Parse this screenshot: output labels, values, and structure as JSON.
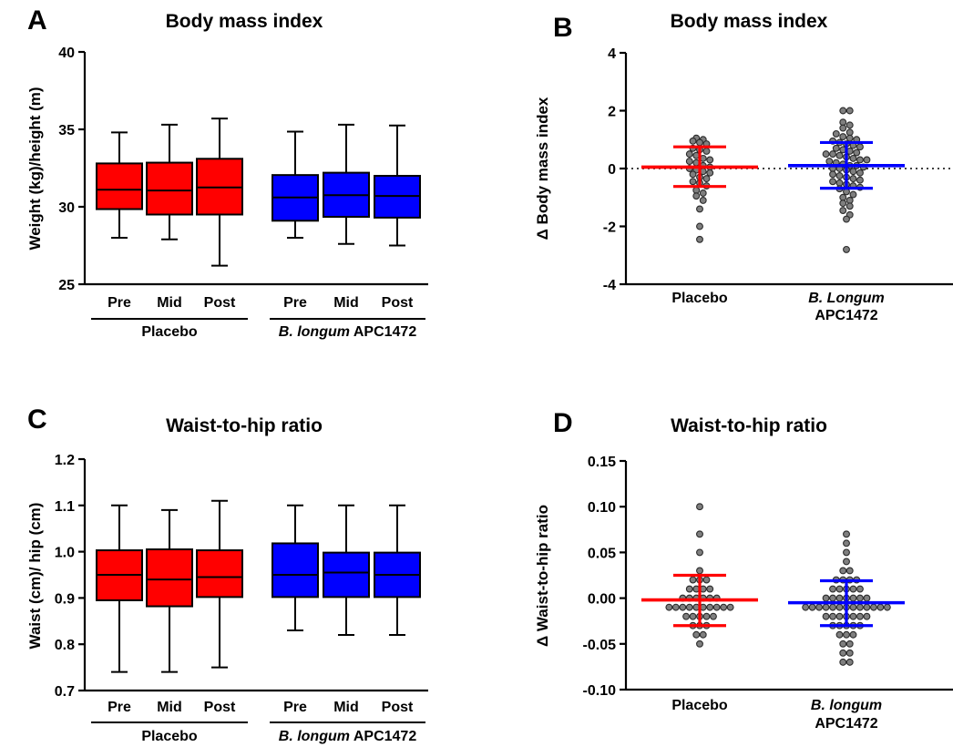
{
  "chart_data": [
    {
      "type": "box",
      "panel_label": "A",
      "title": "Body mass index",
      "ylabel": "Weight (kg)/height (m)",
      "ylim": [
        25,
        40
      ],
      "yticks": [
        "25",
        "30",
        "35",
        "40"
      ],
      "categories": [
        "Pre",
        "Mid",
        "Post",
        "Pre",
        "Mid",
        "Post"
      ],
      "groups": [
        {
          "label": "Placebo",
          "label_italic": "",
          "label_rest": "Placebo",
          "color": "#ff0000"
        },
        {
          "label": "B. longum APC1472",
          "label_italic": "B. longum",
          "label_rest": " APC1472",
          "color": "#0000ff"
        }
      ],
      "boxes": [
        {
          "group": 0,
          "min": 28.0,
          "q1": 29.85,
          "median": 31.1,
          "q3": 32.8,
          "max": 34.8
        },
        {
          "group": 0,
          "min": 27.9,
          "q1": 29.5,
          "median": 31.05,
          "q3": 32.85,
          "max": 35.3
        },
        {
          "group": 0,
          "min": 26.2,
          "q1": 29.5,
          "median": 31.25,
          "q3": 33.1,
          "max": 35.7
        },
        {
          "group": 1,
          "min": 28.0,
          "q1": 29.1,
          "median": 30.6,
          "q3": 32.05,
          "max": 34.85
        },
        {
          "group": 1,
          "min": 27.6,
          "q1": 29.35,
          "median": 30.75,
          "q3": 32.2,
          "max": 35.3
        },
        {
          "group": 1,
          "min": 27.5,
          "q1": 29.3,
          "median": 30.7,
          "q3": 32.0,
          "max": 35.25
        }
      ]
    },
    {
      "type": "scatter",
      "panel_label": "B",
      "title": "Body mass index",
      "ylabel": "Δ Body mass index",
      "ylim": [
        -4,
        4
      ],
      "yticks": [
        "-4",
        "-2",
        "0",
        "2",
        "4"
      ],
      "reference_line": 0,
      "categories": [
        {
          "line1": "Placebo",
          "line1_italic": false,
          "line2": ""
        },
        {
          "line1": "B. Longum",
          "line1_italic": true,
          "line2": "APC1472"
        }
      ],
      "series": [
        {
          "color": "#ff0000",
          "mean": 0.05,
          "sd_upper": 0.75,
          "sd_lower": -0.62,
          "values": [
            1.05,
            1.0,
            0.95,
            0.9,
            0.85,
            0.7,
            0.65,
            0.6,
            0.5,
            0.45,
            0.35,
            0.3,
            0.25,
            0.2,
            0.1,
            0.05,
            0.0,
            -0.05,
            -0.1,
            -0.15,
            -0.2,
            -0.3,
            -0.35,
            -0.45,
            -0.5,
            -0.6,
            -0.75,
            -0.85,
            -0.95,
            -1.1,
            -1.4,
            -2.0,
            -2.45
          ]
        },
        {
          "color": "#0000ff",
          "mean": 0.1,
          "sd_upper": 0.9,
          "sd_lower": -0.68,
          "values": [
            2.0,
            2.0,
            1.6,
            1.5,
            1.4,
            1.25,
            1.2,
            1.1,
            1.05,
            1.0,
            0.95,
            0.9,
            0.85,
            0.8,
            0.75,
            0.7,
            0.65,
            0.6,
            0.55,
            0.5,
            0.5,
            0.45,
            0.4,
            0.35,
            0.3,
            0.3,
            0.25,
            0.2,
            0.15,
            0.1,
            0.1,
            0.05,
            0.0,
            0.0,
            -0.05,
            -0.1,
            -0.15,
            -0.2,
            -0.25,
            -0.3,
            -0.35,
            -0.4,
            -0.45,
            -0.5,
            -0.55,
            -0.6,
            -0.65,
            -0.7,
            -0.8,
            -0.9,
            -1.0,
            -1.1,
            -1.2,
            -1.3,
            -1.45,
            -1.6,
            -1.75,
            -2.8
          ]
        }
      ]
    },
    {
      "type": "box",
      "panel_label": "C",
      "title": "Waist-to-hip ratio",
      "ylabel": "Waist (cm)/ hip (cm)",
      "ylim": [
        0.7,
        1.2
      ],
      "yticks": [
        "0.7",
        "0.8",
        "0.9",
        "1.0",
        "1.1",
        "1.2"
      ],
      "categories": [
        "Pre",
        "Mid",
        "Post",
        "Pre",
        "Mid",
        "Post"
      ],
      "groups": [
        {
          "label": "Placebo",
          "label_italic": "",
          "label_rest": "Placebo",
          "color": "#ff0000"
        },
        {
          "label": "B. longum APC1472",
          "label_italic": "B. longum",
          "label_rest": " APC1472",
          "color": "#0000ff"
        }
      ],
      "boxes": [
        {
          "group": 0,
          "min": 0.74,
          "q1": 0.895,
          "median": 0.95,
          "q3": 1.003,
          "max": 1.1
        },
        {
          "group": 0,
          "min": 0.74,
          "q1": 0.882,
          "median": 0.94,
          "q3": 1.005,
          "max": 1.09
        },
        {
          "group": 0,
          "min": 0.75,
          "q1": 0.902,
          "median": 0.945,
          "q3": 1.003,
          "max": 1.11
        },
        {
          "group": 1,
          "min": 0.83,
          "q1": 0.902,
          "median": 0.95,
          "q3": 1.018,
          "max": 1.1
        },
        {
          "group": 1,
          "min": 0.82,
          "q1": 0.902,
          "median": 0.955,
          "q3": 0.998,
          "max": 1.1
        },
        {
          "group": 1,
          "min": 0.82,
          "q1": 0.902,
          "median": 0.95,
          "q3": 0.998,
          "max": 1.1
        }
      ]
    },
    {
      "type": "scatter",
      "panel_label": "D",
      "title": "Waist-to-hip ratio",
      "ylabel": "Δ Waist-to-hip ratio",
      "ylim": [
        -0.1,
        0.15
      ],
      "yticks": [
        "-0.10",
        "-0.05",
        "0.00",
        "0.05",
        "0.10",
        "0.15"
      ],
      "reference_line": null,
      "categories": [
        {
          "line1": "Placebo",
          "line1_italic": false,
          "line2": ""
        },
        {
          "line1": "B. longum",
          "line1_italic": true,
          "line2": "APC1472"
        }
      ],
      "series": [
        {
          "color": "#ff0000",
          "mean": -0.002,
          "sd_upper": 0.025,
          "sd_lower": -0.03,
          "values": [
            0.1,
            0.07,
            0.05,
            0.03,
            0.02,
            0.02,
            0.02,
            0.01,
            0.01,
            0.01,
            0.01,
            0.0,
            0.0,
            0.0,
            0.0,
            0.0,
            0.0,
            -0.01,
            -0.01,
            -0.01,
            -0.01,
            -0.01,
            -0.01,
            -0.01,
            -0.01,
            -0.01,
            -0.01,
            -0.02,
            -0.02,
            -0.02,
            -0.02,
            -0.02,
            -0.03,
            -0.03,
            -0.03,
            -0.04,
            -0.04,
            -0.05
          ]
        },
        {
          "color": "#0000ff",
          "mean": -0.005,
          "sd_upper": 0.019,
          "sd_lower": -0.03,
          "values": [
            0.07,
            0.06,
            0.05,
            0.04,
            0.03,
            0.03,
            0.02,
            0.02,
            0.02,
            0.02,
            0.01,
            0.01,
            0.01,
            0.01,
            0.01,
            0.0,
            0.0,
            0.0,
            0.0,
            0.0,
            0.0,
            0.0,
            -0.01,
            -0.01,
            -0.01,
            -0.01,
            -0.01,
            -0.01,
            -0.01,
            -0.01,
            -0.01,
            -0.01,
            -0.01,
            -0.01,
            -0.01,
            -0.02,
            -0.02,
            -0.02,
            -0.02,
            -0.02,
            -0.02,
            -0.02,
            -0.03,
            -0.03,
            -0.03,
            -0.03,
            -0.03,
            -0.04,
            -0.04,
            -0.04,
            -0.05,
            -0.05,
            -0.06,
            -0.06,
            -0.07,
            -0.07
          ]
        }
      ]
    }
  ]
}
